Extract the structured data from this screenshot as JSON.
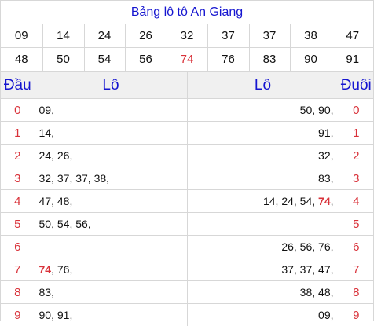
{
  "title": "Bảng lô tô An Giang",
  "numbers_row1": [
    "09",
    "14",
    "24",
    "26",
    "32",
    "37",
    "37",
    "38",
    "47"
  ],
  "numbers_row2": [
    "48",
    "50",
    "54",
    "56",
    "74",
    "76",
    "83",
    "90",
    "91"
  ],
  "highlight_number": "74",
  "headers": {
    "dau": "Đầu",
    "lo_left": "Lô",
    "lo_right": "Lô",
    "duoi": "Đuôi"
  },
  "rows": [
    {
      "dau": "0",
      "lo_left": [
        "09"
      ],
      "lo_right": [
        "50",
        "90"
      ],
      "duoi": "0"
    },
    {
      "dau": "1",
      "lo_left": [
        "14"
      ],
      "lo_right": [
        "91"
      ],
      "duoi": "1"
    },
    {
      "dau": "2",
      "lo_left": [
        "24",
        "26"
      ],
      "lo_right": [
        "32"
      ],
      "duoi": "2"
    },
    {
      "dau": "3",
      "lo_left": [
        "32",
        "37",
        "37",
        "38"
      ],
      "lo_right": [
        "83"
      ],
      "duoi": "3"
    },
    {
      "dau": "4",
      "lo_left": [
        "47",
        "48"
      ],
      "lo_right": [
        "14",
        "24",
        "54",
        "74"
      ],
      "duoi": "4"
    },
    {
      "dau": "5",
      "lo_left": [
        "50",
        "54",
        "56"
      ],
      "lo_right": [],
      "duoi": "5"
    },
    {
      "dau": "6",
      "lo_left": [],
      "lo_right": [
        "26",
        "56",
        "76"
      ],
      "duoi": "6"
    },
    {
      "dau": "7",
      "lo_left": [
        "74",
        "76"
      ],
      "lo_right": [
        "37",
        "37",
        "47"
      ],
      "duoi": "7"
    },
    {
      "dau": "8",
      "lo_left": [
        "83"
      ],
      "lo_right": [
        "38",
        "48"
      ],
      "duoi": "8"
    },
    {
      "dau": "9",
      "lo_left": [
        "90",
        "91"
      ],
      "lo_right": [
        "09"
      ],
      "duoi": "9"
    }
  ],
  "colors": {
    "title": "#1515d0",
    "accent_red": "#d9323a",
    "header_bg": "#f0f0f0",
    "border": "#d7d7d7"
  }
}
